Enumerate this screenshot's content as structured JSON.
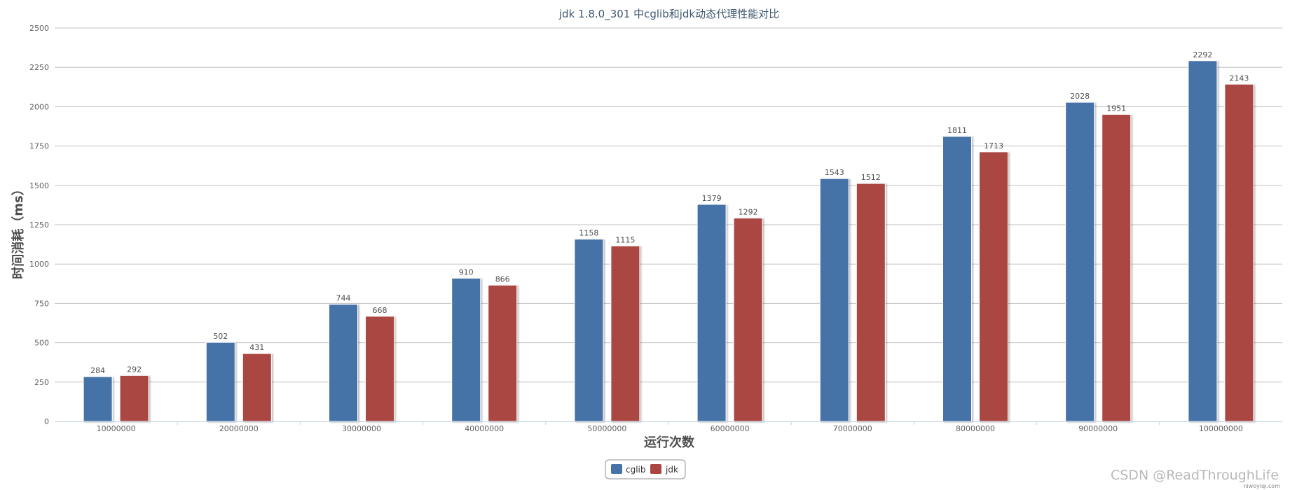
{
  "chart_data": {
    "type": "bar",
    "title": "jdk 1.8.0_301 中cglib和jdk动态代理性能对比",
    "xlabel": "运行次数",
    "ylabel": "时间消耗（ms）",
    "categories": [
      "10000000",
      "20000000",
      "30000000",
      "40000000",
      "50000000",
      "60000000",
      "70000000",
      "80000000",
      "90000000",
      "100000000"
    ],
    "series": [
      {
        "name": "cglib",
        "color": "#4572a7",
        "values": [
          284,
          502,
          744,
          910,
          1158,
          1379,
          1543,
          1811,
          2028,
          2292
        ]
      },
      {
        "name": "jdk",
        "color": "#aa4643",
        "values": [
          292,
          431,
          668,
          866,
          1115,
          1292,
          1512,
          1713,
          1951,
          2143
        ]
      }
    ],
    "ylim": [
      0,
      2500
    ],
    "yticks": [
      0,
      250,
      500,
      750,
      1000,
      1250,
      1500,
      1750,
      2000,
      2250,
      2500
    ],
    "grid": true,
    "legend_position": "bottom-center",
    "data_labels": true
  },
  "watermark": {
    "text": "CSDN @ReadThroughLife",
    "subtext": "niwoyiqi.com"
  }
}
